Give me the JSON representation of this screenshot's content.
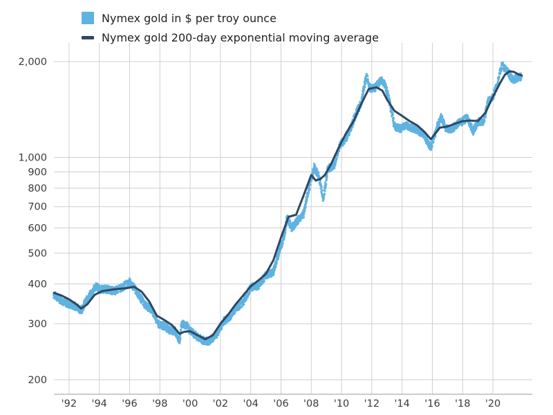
{
  "chart_data": {
    "type": "line",
    "title": "",
    "xlabel": "",
    "ylabel": "",
    "yscale": "log",
    "ylim": [
      200,
      2150
    ],
    "xlim": [
      1991.0,
      2022.6
    ],
    "grid": "vertical gridlines at each x tick; horizontal gridlines at each y tick",
    "legend_position": "top-left",
    "x_ticks": [
      {
        "value": 1992,
        "label": "'92"
      },
      {
        "value": 1994,
        "label": "'94"
      },
      {
        "value": 1996,
        "label": "'96"
      },
      {
        "value": 1998,
        "label": "'98"
      },
      {
        "value": 2000,
        "label": "'00"
      },
      {
        "value": 2002,
        "label": "'02"
      },
      {
        "value": 2004,
        "label": "'04"
      },
      {
        "value": 2006,
        "label": "'06"
      },
      {
        "value": 2008,
        "label": "'08"
      },
      {
        "value": 2010,
        "label": "'10"
      },
      {
        "value": 2012,
        "label": "'12"
      },
      {
        "value": 2014,
        "label": "'14"
      },
      {
        "value": 2016,
        "label": "'16"
      },
      {
        "value": 2018,
        "label": "'18"
      },
      {
        "value": 2020,
        "label": "'20"
      }
    ],
    "y_ticks": [
      {
        "value": 200,
        "label": "200"
      },
      {
        "value": 300,
        "label": "300"
      },
      {
        "value": 400,
        "label": "400"
      },
      {
        "value": 500,
        "label": "500"
      },
      {
        "value": 600,
        "label": "600"
      },
      {
        "value": 700,
        "label": "700"
      },
      {
        "value": 800,
        "label": "800"
      },
      {
        "value": 900,
        "label": "900"
      },
      {
        "value": 1000,
        "label": "1,000"
      },
      {
        "value": 2000,
        "label": "2,000"
      }
    ],
    "series": [
      {
        "name": "Nymex gold in $ per troy ounce",
        "color": "#5fb3e1",
        "style": "points",
        "x": [
          1991.0,
          1991.5,
          1992.0,
          1992.5,
          1992.8,
          1993.0,
          1993.4,
          1993.8,
          1994.0,
          1994.5,
          1995.0,
          1995.5,
          1996.0,
          1996.2,
          1996.5,
          1997.0,
          1997.5,
          1997.9,
          1998.3,
          1998.7,
          1999.0,
          1999.3,
          1999.45,
          1999.8,
          2000.0,
          2000.4,
          2000.9,
          2001.3,
          2001.8,
          2002.2,
          2002.6,
          2003.0,
          2003.5,
          2004.0,
          2004.5,
          2005.0,
          2005.5,
          2005.9,
          2006.2,
          2006.4,
          2006.7,
          2007.0,
          2007.5,
          2007.9,
          2008.2,
          2008.5,
          2008.8,
          2009.1,
          2009.5,
          2009.9,
          2010.3,
          2010.6,
          2011.0,
          2011.3,
          2011.65,
          2011.9,
          2012.2,
          2012.6,
          2012.9,
          2013.3,
          2013.5,
          2013.9,
          2014.3,
          2014.7,
          2015.0,
          2015.4,
          2015.9,
          2016.3,
          2016.6,
          2016.9,
          2017.3,
          2017.7,
          2017.9,
          2018.3,
          2018.7,
          2019.0,
          2019.4,
          2019.7,
          2020.0,
          2020.3,
          2020.6,
          2020.8,
          2021.0,
          2021.3,
          2021.6,
          2021.9
        ],
        "values": [
          370,
          355,
          345,
          340,
          330,
          345,
          370,
          395,
          385,
          385,
          380,
          390,
          405,
          395,
          375,
          345,
          330,
          300,
          295,
          285,
          285,
          265,
          300,
          295,
          285,
          275,
          265,
          265,
          280,
          305,
          315,
          335,
          350,
          390,
          395,
          425,
          435,
          510,
          560,
          650,
          600,
          625,
          665,
          820,
          930,
          870,
          740,
          920,
          940,
          1090,
          1150,
          1230,
          1390,
          1480,
          1800,
          1650,
          1650,
          1750,
          1680,
          1400,
          1250,
          1230,
          1260,
          1230,
          1220,
          1180,
          1070,
          1240,
          1340,
          1230,
          1230,
          1280,
          1290,
          1330,
          1210,
          1290,
          1300,
          1500,
          1550,
          1700,
          1950,
          1900,
          1850,
          1750,
          1780,
          1800
        ]
      },
      {
        "name": "Nymex gold 200-day exponential moving average",
        "color": "#2f4761",
        "style": "line",
        "x": [
          1991.0,
          1991.5,
          1992.0,
          1992.5,
          1992.8,
          1993.2,
          1993.7,
          1994.2,
          1995.0,
          1995.8,
          1996.3,
          1996.8,
          1997.3,
          1997.8,
          1998.3,
          1998.8,
          1999.3,
          1999.6,
          2000.0,
          2000.5,
          2001.0,
          2001.5,
          2002.0,
          2002.5,
          2003.0,
          2003.5,
          2004.0,
          2004.5,
          2005.0,
          2005.5,
          2006.0,
          2006.5,
          2007.0,
          2007.5,
          2008.0,
          2008.3,
          2008.6,
          2008.9,
          2009.3,
          2009.8,
          2010.3,
          2010.8,
          2011.3,
          2011.8,
          2012.3,
          2012.7,
          2013.0,
          2013.5,
          2014.0,
          2014.5,
          2015.0,
          2015.5,
          2015.9,
          2016.5,
          2017.0,
          2017.5,
          2018.0,
          2018.5,
          2019.0,
          2019.5,
          2020.0,
          2020.5,
          2020.8,
          2021.1,
          2021.4,
          2021.7,
          2021.9
        ],
        "values": [
          375,
          368,
          358,
          345,
          335,
          345,
          370,
          380,
          385,
          388,
          392,
          378,
          352,
          318,
          308,
          297,
          279,
          283,
          284,
          276,
          268,
          276,
          300,
          320,
          345,
          368,
          393,
          410,
          430,
          475,
          560,
          650,
          660,
          760,
          880,
          845,
          855,
          880,
          950,
          1070,
          1190,
          1300,
          1470,
          1640,
          1660,
          1620,
          1520,
          1400,
          1350,
          1300,
          1260,
          1200,
          1140,
          1240,
          1250,
          1275,
          1300,
          1305,
          1300,
          1380,
          1550,
          1720,
          1820,
          1865,
          1855,
          1820,
          1810
        ]
      }
    ]
  }
}
